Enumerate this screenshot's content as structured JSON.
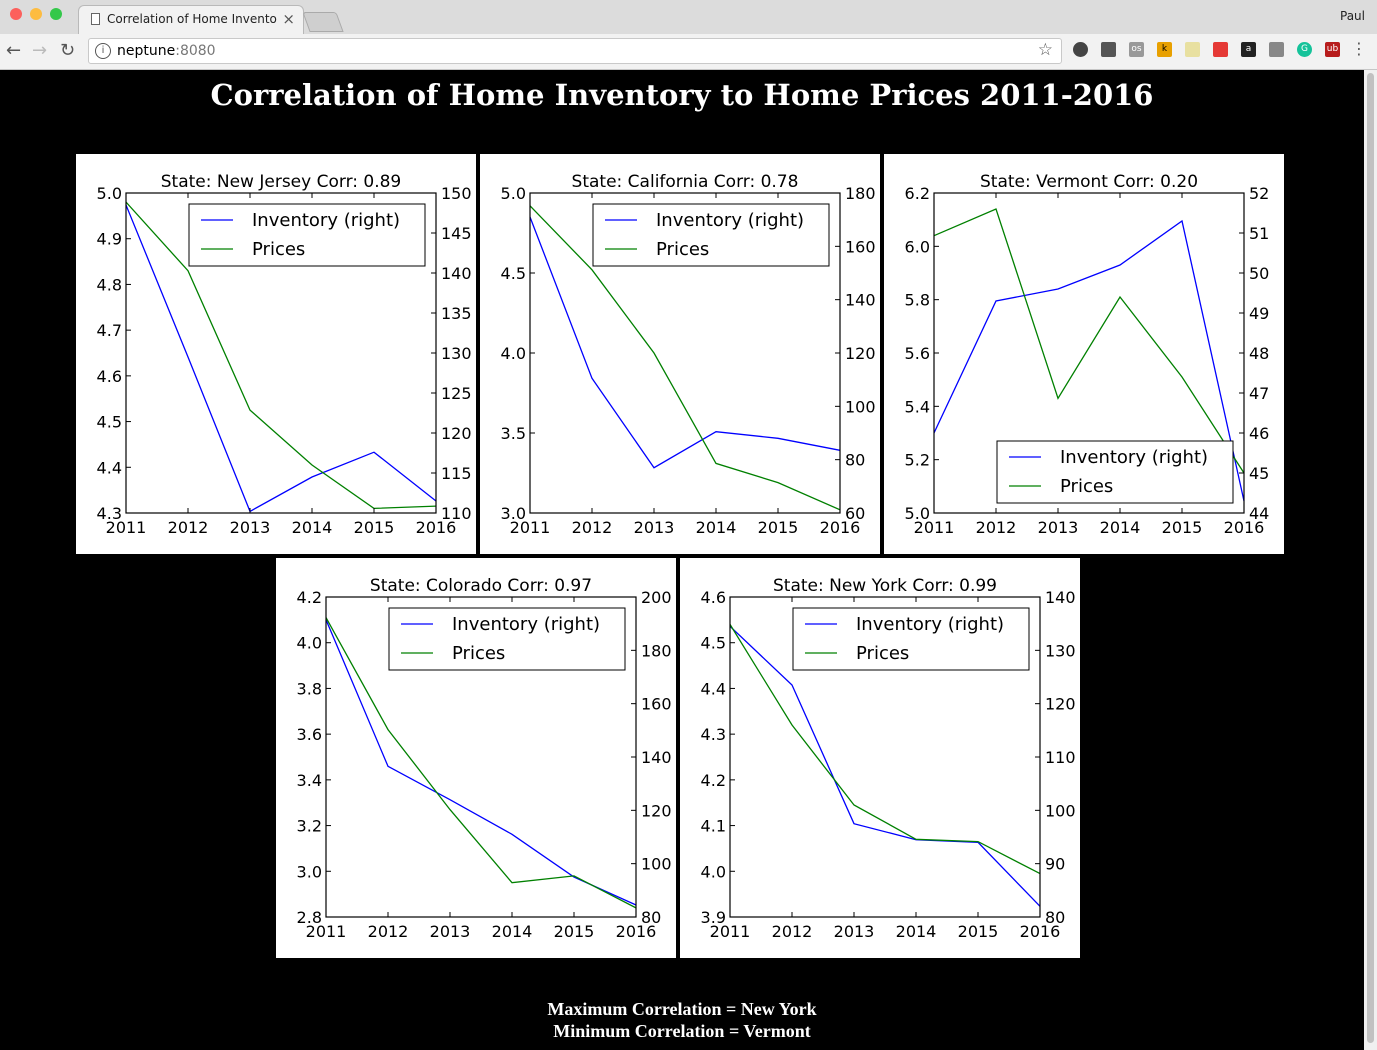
{
  "browser": {
    "tab_title": "Correlation of Home Inventory",
    "user": "Paul",
    "url_host": "neptune",
    "url_port": ":8080"
  },
  "page": {
    "title": "Correlation of Home Inventory to Home Prices 2011-2016",
    "max_line": "Maximum Correlation = New York",
    "min_line": "Minimum Correlation = Vermont"
  },
  "chart_data": [
    {
      "type": "line",
      "title": "State: New Jersey Corr: 0.89",
      "x": [
        2011,
        2012,
        2013,
        2014,
        2015,
        2016
      ],
      "left_axis": {
        "ylim": [
          4.3,
          5.0
        ],
        "ticks": [
          4.3,
          4.4,
          4.5,
          4.6,
          4.7,
          4.8,
          4.9,
          5.0
        ],
        "decimals": 1
      },
      "right_axis": {
        "ylim": [
          110,
          150
        ],
        "ticks": [
          110,
          115,
          120,
          125,
          130,
          135,
          140,
          145,
          150
        ],
        "decimals": 0
      },
      "legend_position": "upper-right",
      "series": [
        {
          "name": "Inventory (right)",
          "color": "#0000ff",
          "axis": "right",
          "values": [
            148.5,
            129.5,
            110.2,
            114.5,
            117.6,
            111.5
          ]
        },
        {
          "name": "Prices",
          "color": "#008000",
          "axis": "left",
          "values": [
            4.98,
            4.83,
            4.525,
            4.405,
            4.31,
            4.315
          ]
        }
      ]
    },
    {
      "type": "line",
      "title": "State: California Corr: 0.78",
      "x": [
        2011,
        2012,
        2013,
        2014,
        2015,
        2016
      ],
      "left_axis": {
        "ylim": [
          3.0,
          5.0
        ],
        "ticks": [
          3.0,
          3.5,
          4.0,
          4.5,
          5.0
        ],
        "decimals": 1
      },
      "right_axis": {
        "ylim": [
          60,
          180
        ],
        "ticks": [
          60,
          80,
          100,
          120,
          140,
          160,
          180
        ],
        "decimals": 0
      },
      "legend_position": "upper-right",
      "series": [
        {
          "name": "Inventory (right)",
          "color": "#0000ff",
          "axis": "right",
          "values": [
            171,
            110.5,
            77,
            90.5,
            88,
            83.5
          ]
        },
        {
          "name": "Prices",
          "color": "#008000",
          "axis": "left",
          "values": [
            4.92,
            4.52,
            4.0,
            3.31,
            3.19,
            3.02
          ]
        }
      ]
    },
    {
      "type": "line",
      "title": "State: Vermont Corr: 0.20",
      "x": [
        2011,
        2012,
        2013,
        2014,
        2015,
        2016
      ],
      "left_axis": {
        "ylim": [
          5.0,
          6.2
        ],
        "ticks": [
          5.0,
          5.2,
          5.4,
          5.6,
          5.8,
          6.0,
          6.2
        ],
        "decimals": 1
      },
      "right_axis": {
        "ylim": [
          44,
          52
        ],
        "ticks": [
          44,
          45,
          46,
          47,
          48,
          49,
          50,
          51,
          52
        ],
        "decimals": 0
      },
      "legend_position": "lower-right",
      "series": [
        {
          "name": "Inventory (right)",
          "color": "#0000ff",
          "axis": "right",
          "values": [
            46.0,
            49.3,
            49.6,
            50.2,
            51.3,
            44.3
          ]
        },
        {
          "name": "Prices",
          "color": "#008000",
          "axis": "left",
          "values": [
            6.04,
            6.14,
            5.43,
            5.81,
            5.51,
            5.15
          ]
        }
      ]
    },
    {
      "type": "line",
      "title": "State: Colorado Corr: 0.97",
      "x": [
        2011,
        2012,
        2013,
        2014,
        2015,
        2016
      ],
      "left_axis": {
        "ylim": [
          2.8,
          4.2
        ],
        "ticks": [
          2.8,
          3.0,
          3.2,
          3.4,
          3.6,
          3.8,
          4.0,
          4.2
        ],
        "decimals": 1
      },
      "right_axis": {
        "ylim": [
          80,
          200
        ],
        "ticks": [
          80,
          100,
          120,
          140,
          160,
          180,
          200
        ],
        "decimals": 0
      },
      "legend_position": "upper-right",
      "series": [
        {
          "name": "Inventory (right)",
          "color": "#0000ff",
          "axis": "right",
          "values": [
            191.5,
            136.5,
            124,
            111,
            95,
            84.5
          ]
        },
        {
          "name": "Prices",
          "color": "#008000",
          "axis": "left",
          "values": [
            4.11,
            3.62,
            3.27,
            2.95,
            2.98,
            2.84
          ]
        }
      ]
    },
    {
      "type": "line",
      "title": "State: New York Corr: 0.99",
      "x": [
        2011,
        2012,
        2013,
        2014,
        2015,
        2016
      ],
      "left_axis": {
        "ylim": [
          3.9,
          4.6
        ],
        "ticks": [
          3.9,
          4.0,
          4.1,
          4.2,
          4.3,
          4.4,
          4.5,
          4.6
        ],
        "decimals": 1
      },
      "right_axis": {
        "ylim": [
          80,
          140
        ],
        "ticks": [
          80,
          90,
          100,
          110,
          120,
          130,
          140
        ],
        "decimals": 0
      },
      "legend_position": "upper-right",
      "series": [
        {
          "name": "Inventory (right)",
          "color": "#0000ff",
          "axis": "right",
          "values": [
            134.5,
            123.5,
            97.5,
            94.5,
            94,
            82
          ]
        },
        {
          "name": "Prices",
          "color": "#008000",
          "axis": "left",
          "values": [
            4.54,
            4.32,
            4.145,
            4.07,
            4.065,
            3.995
          ]
        }
      ]
    }
  ]
}
